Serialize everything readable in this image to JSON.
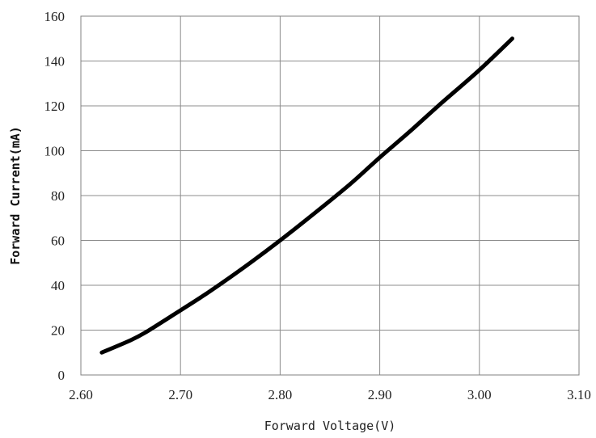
{
  "chart_data": {
    "type": "line",
    "title": "",
    "xlabel": "Forward Voltage(V)",
    "ylabel": "Forward Current(mA)",
    "xlim": [
      2.6,
      3.1
    ],
    "ylim": [
      0,
      160
    ],
    "xticks": [
      2.6,
      2.7,
      2.8,
      2.9,
      3.0,
      3.1
    ],
    "xtick_labels": [
      "2.60",
      "2.70",
      "2.80",
      "2.90",
      "3.00",
      "3.10"
    ],
    "yticks": [
      0,
      20,
      40,
      60,
      80,
      100,
      120,
      140,
      160
    ],
    "ytick_labels": [
      "0",
      "20",
      "40",
      "60",
      "80",
      "100",
      "120",
      "140",
      "160"
    ],
    "grid": true,
    "series": [
      {
        "color": "#000000",
        "x": [
          2.621,
          2.65,
          2.665,
          2.69,
          2.72,
          2.74,
          2.77,
          2.8,
          2.83,
          2.87,
          2.9,
          2.93,
          2.96,
          3.0,
          3.033
        ],
        "y": [
          10,
          15.5,
          19,
          26,
          34.5,
          40.5,
          50,
          60,
          70.5,
          85,
          97,
          108.5,
          120.5,
          136,
          150
        ]
      }
    ]
  }
}
